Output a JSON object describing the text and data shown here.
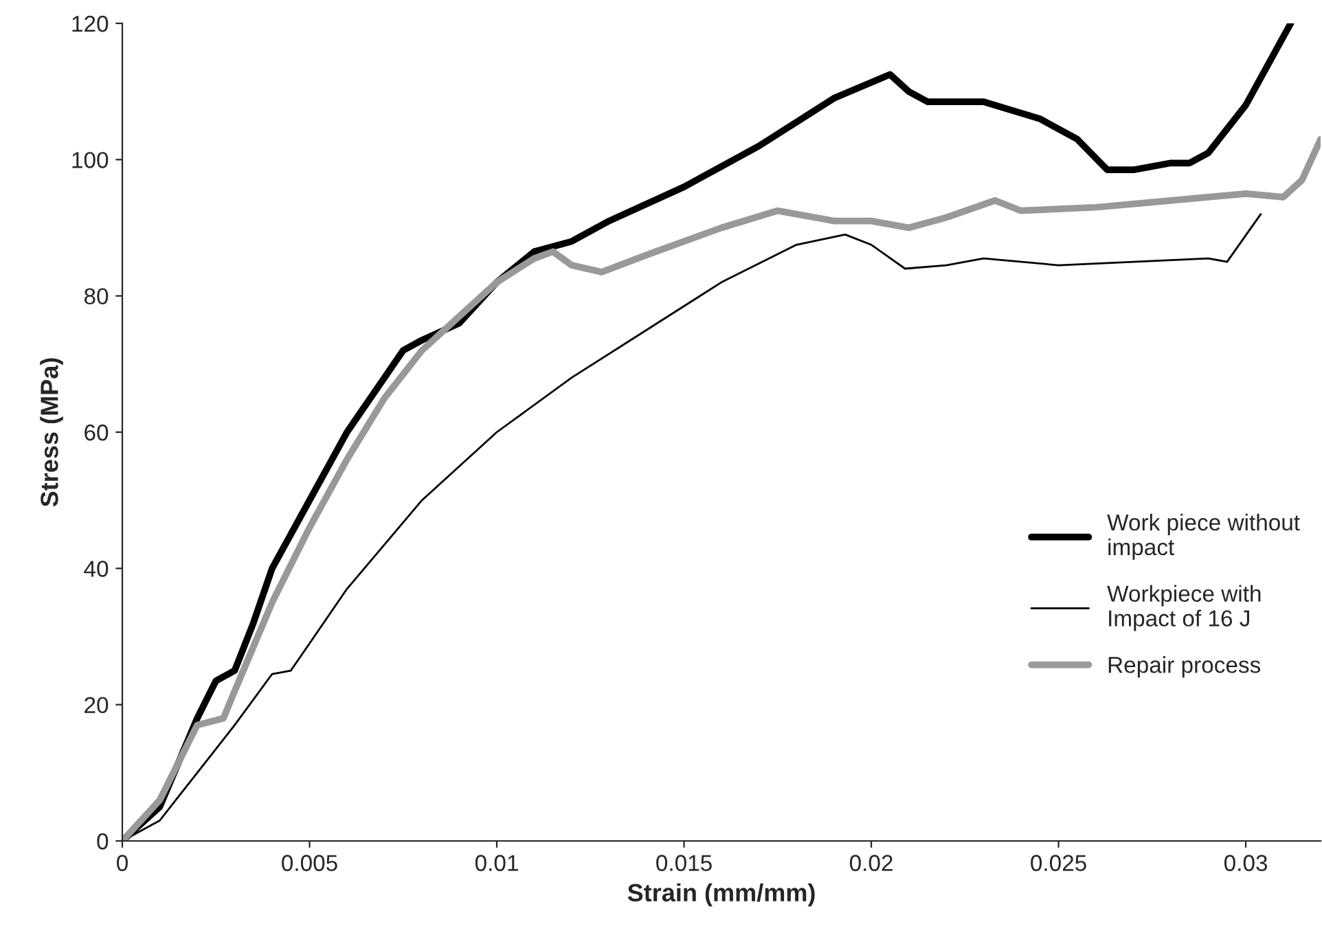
{
  "chart_data": {
    "type": "line",
    "xlabel": "Strain (mm/mm)",
    "ylabel": "Stress (MPa)",
    "xlim": [
      0,
      0.032
    ],
    "xticks": [
      0,
      0.005,
      0.01,
      0.015,
      0.02,
      0.025,
      0.03
    ],
    "ylim": [
      0,
      120
    ],
    "yticks": [
      0,
      20,
      40,
      60,
      80,
      100,
      120
    ],
    "grid": false,
    "legend": "right",
    "series": [
      {
        "name": "Work piece without\nimpact",
        "color": "#000000",
        "x": [
          0,
          0.001,
          0.002,
          0.0025,
          0.003,
          0.0035,
          0.004,
          0.005,
          0.006,
          0.007,
          0.0075,
          0.008,
          0.009,
          0.01,
          0.011,
          0.012,
          0.013,
          0.015,
          0.017,
          0.019,
          0.0205,
          0.021,
          0.0215,
          0.023,
          0.0245,
          0.0255,
          0.0263,
          0.027,
          0.028,
          0.0285,
          0.029,
          0.03,
          0.0312
        ],
        "values": [
          0,
          5,
          18,
          23.5,
          25,
          32,
          40,
          50,
          60,
          68,
          72,
          73.5,
          76,
          82,
          86.5,
          88,
          91,
          96,
          102,
          109,
          112.5,
          110,
          108.5,
          108.5,
          106,
          103,
          98.5,
          98.5,
          99.5,
          99.5,
          101,
          108,
          120
        ]
      },
      {
        "name": "Workpiece with\nImpact of 16 J",
        "color": "#000000",
        "x": [
          0,
          0.001,
          0.002,
          0.003,
          0.004,
          0.0045,
          0.005,
          0.006,
          0.008,
          0.01,
          0.012,
          0.014,
          0.016,
          0.018,
          0.0193,
          0.02,
          0.0209,
          0.022,
          0.023,
          0.025,
          0.027,
          0.029,
          0.0295,
          0.0304
        ],
        "values": [
          0,
          3,
          10,
          17,
          24.5,
          25,
          29,
          37,
          50,
          60,
          68,
          75,
          82,
          87.5,
          89,
          87.5,
          84,
          84.5,
          85.5,
          84.5,
          85,
          85.5,
          85,
          92
        ]
      },
      {
        "name": "Repair process",
        "color": "#999999",
        "x": [
          0,
          0.001,
          0.002,
          0.0027,
          0.003,
          0.004,
          0.005,
          0.006,
          0.007,
          0.008,
          0.009,
          0.01,
          0.011,
          0.0115,
          0.012,
          0.0128,
          0.014,
          0.016,
          0.0175,
          0.019,
          0.02,
          0.021,
          0.022,
          0.0233,
          0.024,
          0.026,
          0.028,
          0.03,
          0.031,
          0.0315,
          0.032
        ],
        "values": [
          0,
          6,
          17,
          18,
          22,
          35,
          46,
          56,
          65,
          72,
          77,
          82,
          85.5,
          86.5,
          84.5,
          83.5,
          86,
          90,
          92.5,
          91,
          91,
          90,
          91.5,
          94,
          92.5,
          93,
          94,
          95,
          94.5,
          97,
          103
        ]
      }
    ]
  }
}
